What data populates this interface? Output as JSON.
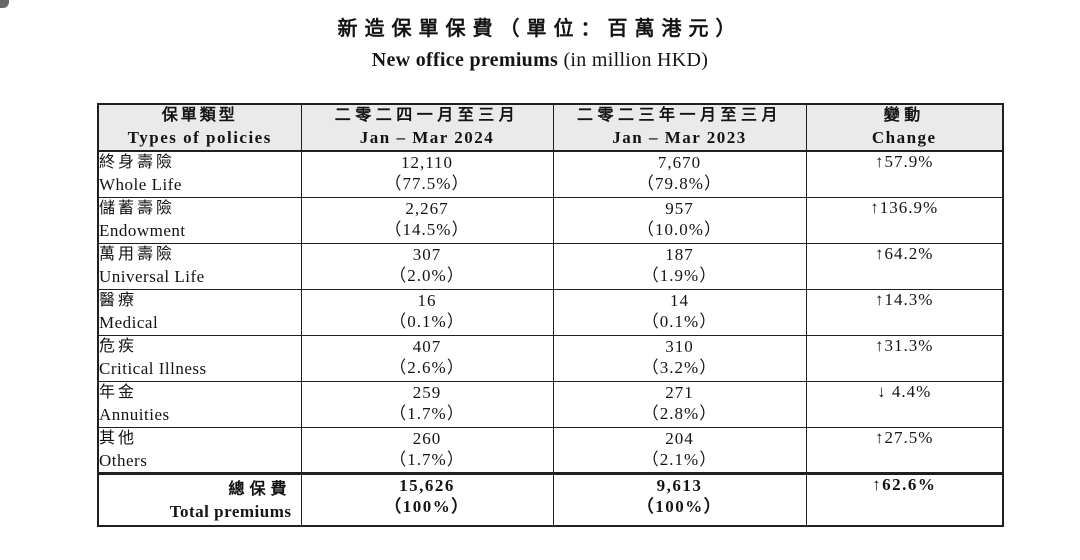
{
  "page": {
    "title_zh": "新造保單保費（單位：百萬港元）",
    "title_en_bold": "New office premiums",
    "title_en_rest": " (in million HKD)"
  },
  "table": {
    "header": {
      "policies_zh": "保單類型",
      "policies_en": "Types of policies",
      "y2024_zh": "二零二四一月至三月",
      "y2024_en": "Jan – Mar 2024",
      "y2023_zh": "二零二三年一月至三月",
      "y2023_en": "Jan – Mar 2023",
      "change_zh": "變動",
      "change_en": "Change"
    },
    "rows": [
      {
        "zh": "終身壽險",
        "en": "Whole Life",
        "v2024": "12,110",
        "p2024": "（77.5%）",
        "v2023": "7,670",
        "p2023": "（79.8%）",
        "change": "↑57.9%"
      },
      {
        "zh": "儲蓄壽險",
        "en": "Endowment",
        "v2024": "2,267",
        "p2024": "（14.5%）",
        "v2023": "957",
        "p2023": "（10.0%）",
        "change": "↑136.9%"
      },
      {
        "zh": "萬用壽險",
        "en": "Universal Life",
        "v2024": "307",
        "p2024": "（2.0%）",
        "v2023": "187",
        "p2023": "（1.9%）",
        "change": "↑64.2%"
      },
      {
        "zh": "醫療",
        "en": "Medical",
        "v2024": "16",
        "p2024": "（0.1%）",
        "v2023": "14",
        "p2023": "（0.1%）",
        "change": "↑14.3%"
      },
      {
        "zh": "危疾",
        "en": "Critical Illness",
        "v2024": "407",
        "p2024": "（2.6%）",
        "v2023": "310",
        "p2023": "（3.2%）",
        "change": "↑31.3%"
      },
      {
        "zh": "年金",
        "en": "Annuities",
        "v2024": "259",
        "p2024": "（1.7%）",
        "v2023": "271",
        "p2023": "（2.8%）",
        "change": "↓ 4.4%"
      },
      {
        "zh": "其他",
        "en": "Others",
        "v2024": "260",
        "p2024": "（1.7%）",
        "v2023": "204",
        "p2023": "（2.1%）",
        "change": "↑27.5%"
      }
    ],
    "total": {
      "zh": "總保費",
      "en": "Total premiums",
      "v2024": "15,626",
      "p2024": "（100%）",
      "v2023": "9,613",
      "p2023": "（100%）",
      "change": "↑62.6%"
    }
  },
  "colors": {
    "border": "#1f1f1f",
    "header_bg": "#eaeaea",
    "text": "#141414",
    "page_bg": "#ffffff"
  }
}
